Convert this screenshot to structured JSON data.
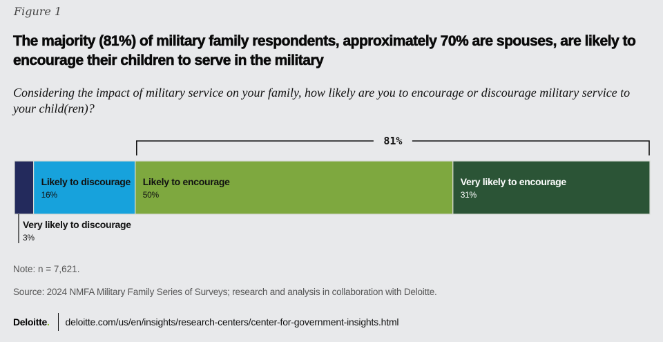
{
  "figure_label": "Figure 1",
  "title": "The majority (81%) of military family respondents, approximately 70% are spouses, are likely to encourage their children to serve in the military",
  "subtitle": "Considering the impact of military service on your family, how likely are you to encourage or discourage military service to your child(ren)?",
  "chart_data": {
    "type": "bar",
    "orientation": "horizontal-stacked-100",
    "title": "The majority (81%) of military family respondents, approximately 70% are spouses, are likely to encourage their children to serve in the military",
    "categories": [
      "Very likely to discourage",
      "Likely to discourage",
      "Likely to encourage",
      "Very likely to encourage"
    ],
    "values": [
      3,
      16,
      50,
      31
    ],
    "value_labels": [
      "3%",
      "16%",
      "50%",
      "31%"
    ],
    "colors": [
      "#232a5c",
      "#17a2dc",
      "#7ea83f",
      "#2b5436"
    ],
    "text_colors": [
      "#111111",
      "#111111",
      "#111111",
      "#ffffff"
    ],
    "xlim": [
      0,
      100
    ],
    "annotations": [
      {
        "type": "bracket",
        "label": "81%",
        "from_category": "Likely to encourage",
        "to_category": "Very likely to encourage"
      }
    ],
    "xlabel": "",
    "ylabel": "",
    "grid": false
  },
  "note": "Note: n = 7,621.",
  "source": "Source: 2024 NMFA Military Family Series of Surveys; research and analysis in collaboration with Deloitte.",
  "footer": {
    "logo": "Deloitte",
    "logo_dot": ".",
    "url": "deloitte.com/us/en/insights/research-centers/center-for-government-insights.html"
  }
}
